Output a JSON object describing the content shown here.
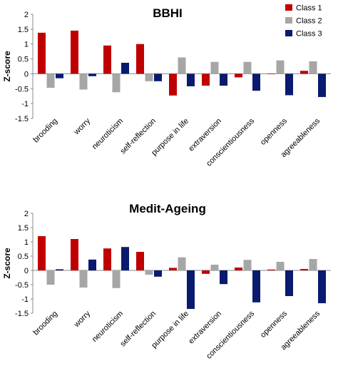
{
  "colors": {
    "class1": "#c00000",
    "class2": "#a6a6a6",
    "class3": "#0a1a6e"
  },
  "legend": [
    "Class 1",
    "Class 2",
    "Class 3"
  ],
  "chart_data": [
    {
      "type": "bar",
      "title": "BBHI",
      "ylabel": "Z-score",
      "ylim": [
        -1.5,
        2
      ],
      "yticks": [
        "2",
        "1.5",
        "1",
        "0.5",
        "0",
        "-0.5",
        "-1",
        "-1.5"
      ],
      "categories": [
        "brooding",
        "worry",
        "neuroticism",
        "self-reflection",
        "purpose in life",
        "extraversion",
        "conscientiousness",
        "openness",
        "agreeableness"
      ],
      "series": [
        {
          "name": "Class 1",
          "values": [
            1.38,
            1.45,
            0.95,
            1.0,
            -0.73,
            -0.4,
            -0.12,
            0.0,
            0.1
          ]
        },
        {
          "name": "Class 2",
          "values": [
            -0.47,
            -0.53,
            -0.62,
            -0.25,
            0.55,
            0.4,
            0.4,
            0.45,
            0.42
          ]
        },
        {
          "name": "Class 3",
          "values": [
            -0.15,
            -0.08,
            0.37,
            -0.25,
            -0.42,
            -0.4,
            -0.57,
            -0.72,
            -0.78
          ]
        }
      ],
      "legend_position": "top-right",
      "grid": false
    },
    {
      "type": "bar",
      "title": "Medit-Ageing",
      "ylabel": "Z-score",
      "ylim": [
        -1.5,
        2
      ],
      "yticks": [
        "2",
        "1.5",
        "1",
        "0.5",
        "0",
        "-0.5",
        "-1",
        "-1.5"
      ],
      "categories": [
        "brooding",
        "worry",
        "neuroticism",
        "self-reflection",
        "purpose in life",
        "extraversion",
        "conscientiousness",
        "openness",
        "agreeableness"
      ],
      "series": [
        {
          "name": "Class 1",
          "values": [
            1.2,
            1.1,
            0.77,
            0.65,
            0.09,
            -0.12,
            0.1,
            0.03,
            0.05
          ]
        },
        {
          "name": "Class 2",
          "values": [
            -0.5,
            -0.6,
            -0.62,
            -0.15,
            0.46,
            0.2,
            0.37,
            0.3,
            0.4
          ]
        },
        {
          "name": "Class 3",
          "values": [
            0.04,
            0.38,
            0.82,
            -0.22,
            -1.35,
            -0.48,
            -1.12,
            -0.9,
            -1.15
          ]
        }
      ],
      "grid": false
    }
  ]
}
